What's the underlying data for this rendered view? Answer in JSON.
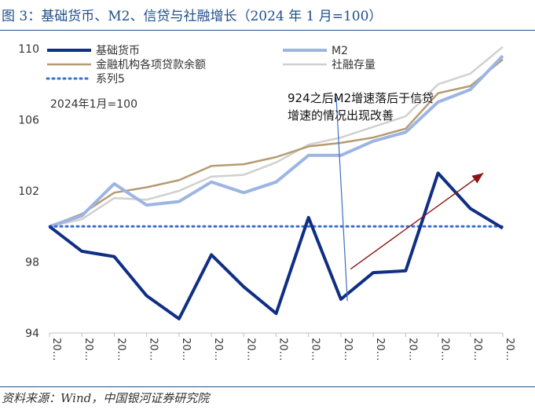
{
  "header": {
    "title": "图 3：基础货币、M2、信贷与社融增长（2024 年 1 月=100）"
  },
  "footer": {
    "source": "资料来源：Wind，中国银河证券研究院"
  },
  "colors": {
    "base_money": "#102f84",
    "m2": "#9db5e3",
    "loans": "#b69b72",
    "tsf": "#d0d0d0",
    "series5": "#3a6fc8",
    "arrow": "#8b1414",
    "callout_line": "#3a6fc8",
    "title": "#1f4e8c"
  },
  "chart_data": {
    "type": "line",
    "title": "",
    "xlabel": "",
    "ylabel": "",
    "ylim": [
      94,
      110
    ],
    "yticks": [
      94,
      98,
      102,
      106,
      110
    ],
    "grid": false,
    "legend_position": "top",
    "x": [
      0,
      1,
      2,
      3,
      4,
      5,
      6,
      7,
      8,
      9,
      10,
      11,
      12,
      13,
      14
    ],
    "x_tick_labels": [
      "20…",
      "20…",
      "20…",
      "20…",
      "20…",
      "20…",
      "20…",
      "20…",
      "20…",
      "20…",
      "20…",
      "20…",
      "20…",
      "20…",
      "20…"
    ],
    "inner_label": "2024年1月=100",
    "annotation": {
      "text_lines": [
        "924之后M2增速落后于信贷",
        "增速的情况出现改善"
      ],
      "pointer_x": 9.2,
      "pointer_y": 95.8
    },
    "trend_arrow": {
      "from": [
        9.3,
        97.6
      ],
      "to": [
        13.4,
        103.0
      ]
    },
    "series": [
      {
        "name": "基础货币",
        "color_key": "base_money",
        "width": 4,
        "dash": "",
        "values": [
          100.0,
          98.6,
          98.3,
          96.1,
          94.8,
          98.4,
          96.6,
          95.1,
          100.5,
          95.9,
          97.4,
          97.5,
          103.0,
          101.0,
          99.9
        ]
      },
      {
        "name": "M2",
        "color_key": "m2",
        "width": 4,
        "dash": "",
        "values": [
          100.0,
          100.6,
          102.4,
          101.2,
          101.4,
          102.5,
          101.9,
          102.5,
          104.0,
          104.0,
          104.8,
          105.3,
          107.0,
          107.7,
          109.6
        ]
      },
      {
        "name": "金融机构各项贷款余额",
        "color_key": "loans",
        "width": 2.5,
        "dash": "",
        "values": [
          100.0,
          100.7,
          101.9,
          102.2,
          102.6,
          103.4,
          103.5,
          103.9,
          104.5,
          104.7,
          105.0,
          105.5,
          107.5,
          107.9,
          109.4
        ]
      },
      {
        "name": "社融存量",
        "color_key": "tsf",
        "width": 2.5,
        "dash": "",
        "values": [
          100.0,
          100.4,
          101.6,
          101.5,
          102.0,
          102.8,
          102.9,
          103.6,
          104.6,
          105.0,
          105.6,
          106.2,
          108.0,
          108.6,
          110.1
        ]
      },
      {
        "name": "系列5",
        "color_key": "series5",
        "width": 3,
        "dash": "2 5",
        "values": [
          100,
          100,
          100,
          100,
          100,
          100,
          100,
          100,
          100,
          100,
          100,
          100,
          100,
          100,
          100
        ]
      }
    ]
  }
}
